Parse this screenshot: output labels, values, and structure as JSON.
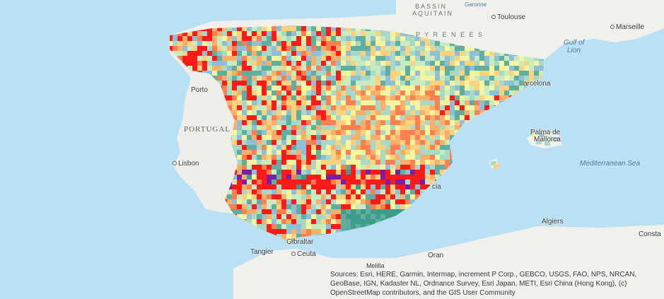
{
  "map": {
    "colors": {
      "ocean": "#b9e0f3",
      "land": "#f1f0ec",
      "raster_palette": [
        "#3d9c8c",
        "#5fae9f",
        "#8fbfd6",
        "#a8d8c8",
        "#c8ecc0",
        "#f5f5a0",
        "#fdd27e",
        "#fcae6b",
        "#ff7f50",
        "#ff1a1a",
        "#7a1fa2"
      ]
    },
    "labels": {
      "bassin": "BASSIN",
      "aquitain": "AQUITAIN",
      "garonne": "Garonne",
      "toulouse": "Toulouse",
      "marseille": "Marseille",
      "gulf": "Gulf of",
      "lion": "Lion",
      "pyrenees": "P Y R E N E E S",
      "porto": "Porto",
      "portugal": "PORTUGAL",
      "lisbon": "Lisbon",
      "barcelona": "arcelona",
      "palma": "Palma de",
      "mallorca": "Mallorca",
      "med": "Mediterranean Sea",
      "valencia": "cia",
      "gibraltar": "Gibraltar",
      "tangier": "Tangier",
      "ceuta": "Ceuta",
      "oran": "Oran",
      "algiers": "Algiers",
      "constantine": "Consta",
      "melilla": "Melilla"
    },
    "attribution": "Sources: Esri, HERE, Garmin, Intermap, increment P Corp., GEBCO, USGS, FAO, NPS, NRCAN, GeoBase, IGN, Kadaster NL, Ordnance Survey, Esri Japan, METI, Esri China (Hong Kong), (c) OpenStreetMap contributors, and the GIS User Community"
  }
}
